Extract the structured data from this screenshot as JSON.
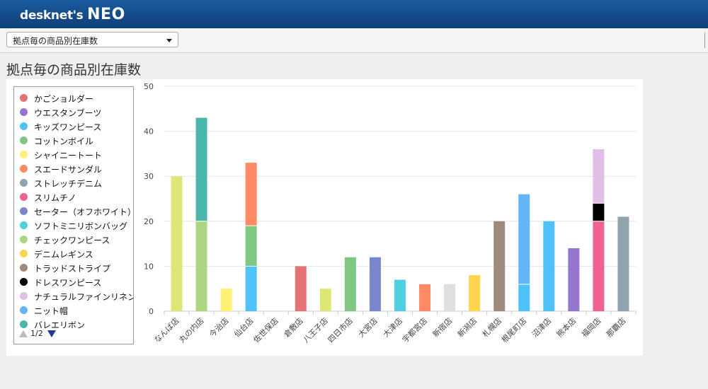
{
  "app": {
    "logo_text": "desknet's",
    "logo_neo": "NEO"
  },
  "toolbar": {
    "report_select_value": "拠点毎の商品別在庫数"
  },
  "page": {
    "title": "拠点毎の商品別在庫数"
  },
  "legend": {
    "page_indicator": "1/2"
  },
  "chart_data": {
    "type": "bar",
    "stacked": true,
    "title": "",
    "xlabel": "",
    "ylabel": "",
    "ylim": [
      0,
      50
    ],
    "yticks": [
      0,
      10,
      20,
      30,
      40,
      50
    ],
    "grid": true,
    "legend_position": "left",
    "categories": [
      "なんば店",
      "丸の内店",
      "今治店",
      "仙台店",
      "佐世保店",
      "倉敷店",
      "八王子店",
      "四日市店",
      "大宮店",
      "大津店",
      "宇都宮店",
      "新宿店",
      "新潟店",
      "札幌店",
      "根尾町店",
      "沼津店",
      "熊本店",
      "福岡店",
      "那覇店"
    ],
    "series": [
      {
        "name": "かごショルダー",
        "color": "#e57373",
        "values": [
          0,
          0,
          0,
          0,
          0,
          10,
          0,
          0,
          0,
          0,
          0,
          0,
          0,
          0,
          0,
          0,
          0,
          0,
          0
        ]
      },
      {
        "name": "ウエスタンブーツ",
        "color": "#9575cd",
        "values": [
          0,
          0,
          0,
          0,
          0,
          0,
          0,
          0,
          0,
          0,
          0,
          0,
          0,
          0,
          0,
          0,
          14,
          0,
          0
        ]
      },
      {
        "name": "キッズワンピース",
        "color": "#4fc3f7",
        "values": [
          0,
          0,
          0,
          10,
          0,
          0,
          0,
          0,
          0,
          0,
          0,
          0,
          0,
          0,
          6,
          20,
          0,
          0,
          0
        ]
      },
      {
        "name": "コットンボイル",
        "color": "#81c784",
        "values": [
          0,
          0,
          0,
          9,
          0,
          0,
          0,
          12,
          0,
          0,
          0,
          0,
          0,
          0,
          0,
          0,
          0,
          0,
          0
        ]
      },
      {
        "name": "シャイニートート",
        "color": "#fff176",
        "values": [
          0,
          0,
          5,
          0,
          0,
          0,
          0,
          0,
          0,
          0,
          0,
          0,
          0,
          0,
          0,
          0,
          0,
          0,
          0
        ]
      },
      {
        "name": "スエードサンダル",
        "color": "#ff8a65",
        "values": [
          0,
          0,
          0,
          14,
          0,
          0,
          0,
          0,
          0,
          0,
          6,
          0,
          0,
          0,
          0,
          0,
          0,
          0,
          0
        ]
      },
      {
        "name": "ストレッチデニム",
        "color": "#90a4ae",
        "values": [
          0,
          0,
          0,
          0,
          0,
          0,
          0,
          0,
          0,
          0,
          0,
          0,
          0,
          0,
          0,
          0,
          0,
          0,
          21
        ]
      },
      {
        "name": "スリムチノ",
        "color": "#f06292",
        "values": [
          0,
          0,
          0,
          0,
          0,
          0,
          0,
          0,
          0,
          0,
          0,
          0,
          0,
          0,
          0,
          0,
          0,
          20,
          0
        ]
      },
      {
        "name": "セーター（オフホワイト）",
        "color": "#7986cb",
        "values": [
          0,
          0,
          0,
          0,
          0,
          0,
          0,
          0,
          12,
          0,
          0,
          0,
          0,
          0,
          0,
          0,
          0,
          0,
          0
        ]
      },
      {
        "name": "ソフトミニリボンバッグ",
        "color": "#4dd0e1",
        "values": [
          0,
          0,
          0,
          0,
          0,
          0,
          0,
          0,
          0,
          7,
          0,
          0,
          0,
          0,
          0,
          0,
          0,
          0,
          0
        ]
      },
      {
        "name": "チェックワンピース",
        "color": "#aed581",
        "values": [
          0,
          20,
          0,
          0,
          0,
          0,
          0,
          0,
          0,
          0,
          0,
          0,
          0,
          0,
          0,
          0,
          0,
          0,
          0
        ]
      },
      {
        "name": "デニムレギンス",
        "color": "#ffd54f",
        "values": [
          0,
          0,
          0,
          0,
          0,
          0,
          0,
          0,
          0,
          0,
          0,
          0,
          8,
          0,
          0,
          0,
          0,
          0,
          0
        ]
      },
      {
        "name": "トラッドストライプ",
        "color": "#a1887f",
        "values": [
          0,
          0,
          0,
          0,
          0,
          0,
          0,
          0,
          0,
          0,
          0,
          0,
          0,
          20,
          0,
          0,
          0,
          0,
          0
        ]
      },
      {
        "name": "ドレスワンピース",
        "color": "#000000",
        "values": [
          0,
          0,
          0,
          0,
          0,
          0,
          0,
          0,
          0,
          0,
          0,
          0,
          0,
          0,
          0,
          0,
          0,
          4,
          0
        ]
      },
      {
        "name": "ナチュラルファインリネン",
        "color": "#e1bee7",
        "values": [
          0,
          0,
          0,
          0,
          0,
          0,
          0,
          0,
          0,
          0,
          0,
          0,
          0,
          0,
          0,
          0,
          0,
          12,
          0
        ]
      },
      {
        "name": "ニット帽",
        "color": "#64b5f6",
        "values": [
          0,
          0,
          0,
          0,
          0,
          0,
          0,
          0,
          0,
          0,
          0,
          0,
          0,
          0,
          20,
          0,
          0,
          0,
          0
        ]
      },
      {
        "name": "バレエリボン",
        "color": "#4db6ac",
        "values": [
          0,
          23,
          0,
          0,
          0,
          0,
          0,
          0,
          0,
          0,
          0,
          0,
          0,
          0,
          0,
          0,
          0,
          0,
          0
        ]
      },
      {
        "name": "",
        "color": "#dce775",
        "values": [
          30,
          0,
          0,
          0,
          0,
          0,
          5,
          0,
          0,
          0,
          0,
          0,
          0,
          0,
          0,
          0,
          0,
          0,
          0
        ]
      },
      {
        "name": "",
        "color": "#e0e0e0",
        "values": [
          0,
          0,
          0,
          0,
          0,
          0,
          0,
          0,
          0,
          0,
          0,
          6,
          0,
          0,
          0,
          0,
          0,
          0,
          0
        ]
      }
    ]
  }
}
